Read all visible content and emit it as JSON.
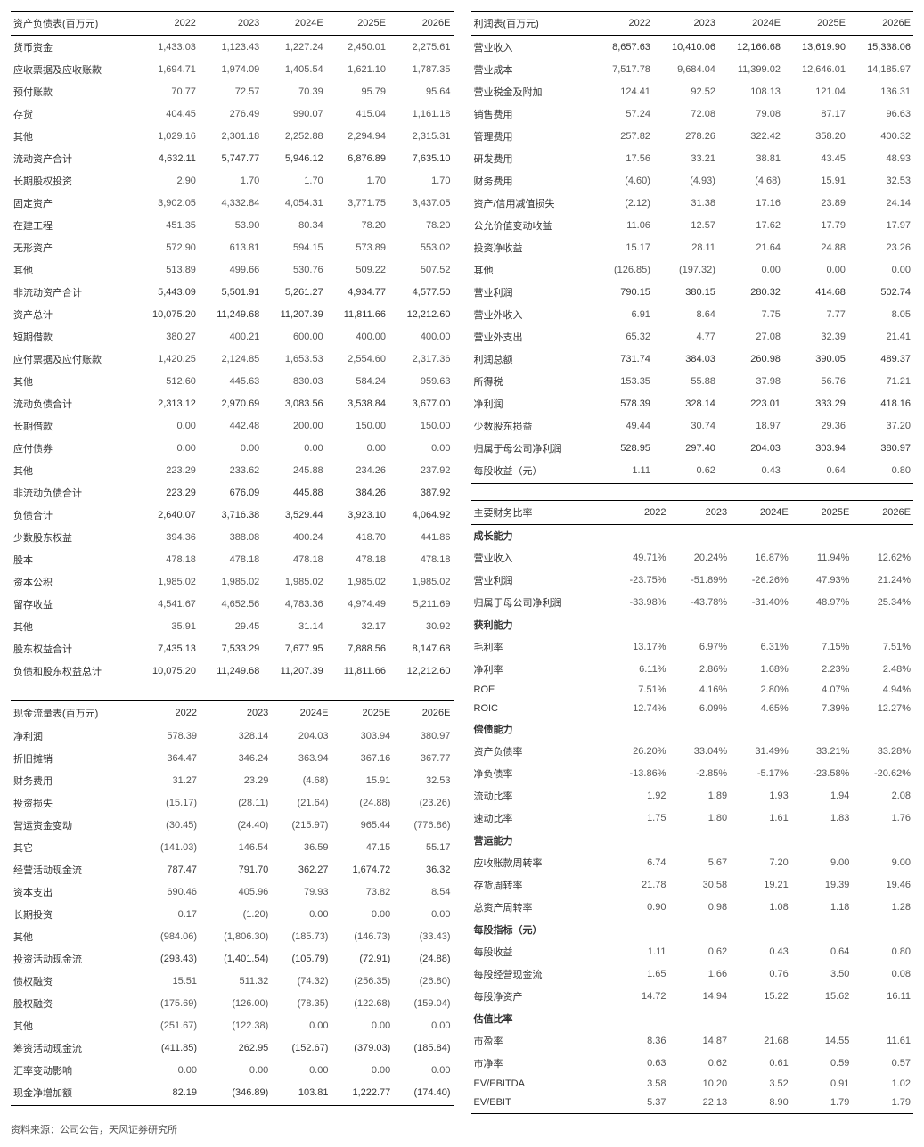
{
  "years": [
    "2022",
    "2023",
    "2024E",
    "2025E",
    "2026E"
  ],
  "balance_sheet": {
    "title": "资产负债表(百万元)",
    "rows": [
      {
        "label": "货币资金",
        "v": [
          "1,433.03",
          "1,123.43",
          "1,227.24",
          "2,450.01",
          "2,275.61"
        ]
      },
      {
        "label": "应收票据及应收账款",
        "v": [
          "1,694.71",
          "1,974.09",
          "1,405.54",
          "1,621.10",
          "1,787.35"
        ]
      },
      {
        "label": "预付账款",
        "v": [
          "70.77",
          "72.57",
          "70.39",
          "95.79",
          "95.64"
        ]
      },
      {
        "label": "存货",
        "v": [
          "404.45",
          "276.49",
          "990.07",
          "415.04",
          "1,161.18"
        ]
      },
      {
        "label": "其他",
        "v": [
          "1,029.16",
          "2,301.18",
          "2,252.88",
          "2,294.94",
          "2,315.31"
        ]
      },
      {
        "label": "流动资产合计",
        "v": [
          "4,632.11",
          "5,747.77",
          "5,946.12",
          "6,876.89",
          "7,635.10"
        ],
        "bold": true
      },
      {
        "label": "长期股权投资",
        "v": [
          "2.90",
          "1.70",
          "1.70",
          "1.70",
          "1.70"
        ]
      },
      {
        "label": "固定资产",
        "v": [
          "3,902.05",
          "4,332.84",
          "4,054.31",
          "3,771.75",
          "3,437.05"
        ]
      },
      {
        "label": "在建工程",
        "v": [
          "451.35",
          "53.90",
          "80.34",
          "78.20",
          "78.20"
        ]
      },
      {
        "label": "无形资产",
        "v": [
          "572.90",
          "613.81",
          "594.15",
          "573.89",
          "553.02"
        ]
      },
      {
        "label": "其他",
        "v": [
          "513.89",
          "499.66",
          "530.76",
          "509.22",
          "507.52"
        ]
      },
      {
        "label": "非流动资产合计",
        "v": [
          "5,443.09",
          "5,501.91",
          "5,261.27",
          "4,934.77",
          "4,577.50"
        ],
        "bold": true
      },
      {
        "label": "资产总计",
        "v": [
          "10,075.20",
          "11,249.68",
          "11,207.39",
          "11,811.66",
          "12,212.60"
        ],
        "bold": true
      },
      {
        "label": "短期借款",
        "v": [
          "380.27",
          "400.21",
          "600.00",
          "400.00",
          "400.00"
        ]
      },
      {
        "label": "应付票据及应付账款",
        "v": [
          "1,420.25",
          "2,124.85",
          "1,653.53",
          "2,554.60",
          "2,317.36"
        ]
      },
      {
        "label": "其他",
        "v": [
          "512.60",
          "445.63",
          "830.03",
          "584.24",
          "959.63"
        ]
      },
      {
        "label": "流动负债合计",
        "v": [
          "2,313.12",
          "2,970.69",
          "3,083.56",
          "3,538.84",
          "3,677.00"
        ],
        "bold": true
      },
      {
        "label": "长期借款",
        "v": [
          "0.00",
          "442.48",
          "200.00",
          "150.00",
          "150.00"
        ]
      },
      {
        "label": "应付债券",
        "v": [
          "0.00",
          "0.00",
          "0.00",
          "0.00",
          "0.00"
        ]
      },
      {
        "label": "其他",
        "v": [
          "223.29",
          "233.62",
          "245.88",
          "234.26",
          "237.92"
        ]
      },
      {
        "label": "非流动负债合计",
        "v": [
          "223.29",
          "676.09",
          "445.88",
          "384.26",
          "387.92"
        ],
        "bold": true
      },
      {
        "label": "负债合计",
        "v": [
          "2,640.07",
          "3,716.38",
          "3,529.44",
          "3,923.10",
          "4,064.92"
        ],
        "bold": true
      },
      {
        "label": "少数股东权益",
        "v": [
          "394.36",
          "388.08",
          "400.24",
          "418.70",
          "441.86"
        ]
      },
      {
        "label": "股本",
        "v": [
          "478.18",
          "478.18",
          "478.18",
          "478.18",
          "478.18"
        ]
      },
      {
        "label": "资本公积",
        "v": [
          "1,985.02",
          "1,985.02",
          "1,985.02",
          "1,985.02",
          "1,985.02"
        ]
      },
      {
        "label": "留存收益",
        "v": [
          "4,541.67",
          "4,652.56",
          "4,783.36",
          "4,974.49",
          "5,211.69"
        ]
      },
      {
        "label": "其他",
        "v": [
          "35.91",
          "29.45",
          "31.14",
          "32.17",
          "30.92"
        ]
      },
      {
        "label": "股东权益合计",
        "v": [
          "7,435.13",
          "7,533.29",
          "7,677.95",
          "7,888.56",
          "8,147.68"
        ],
        "bold": true
      },
      {
        "label": "负债和股东权益总计",
        "v": [
          "10,075.20",
          "11,249.68",
          "11,207.39",
          "11,811.66",
          "12,212.60"
        ],
        "bold": true
      }
    ]
  },
  "cash_flow": {
    "title": "现金流量表(百万元)",
    "rows": [
      {
        "label": "净利润",
        "v": [
          "578.39",
          "328.14",
          "204.03",
          "303.94",
          "380.97"
        ]
      },
      {
        "label": "折旧摊销",
        "v": [
          "364.47",
          "346.24",
          "363.94",
          "367.16",
          "367.77"
        ]
      },
      {
        "label": "财务费用",
        "v": [
          "31.27",
          "23.29",
          "(4.68)",
          "15.91",
          "32.53"
        ]
      },
      {
        "label": "投资损失",
        "v": [
          "(15.17)",
          "(28.11)",
          "(21.64)",
          "(24.88)",
          "(23.26)"
        ]
      },
      {
        "label": "营运资金变动",
        "v": [
          "(30.45)",
          "(24.40)",
          "(215.97)",
          "965.44",
          "(776.86)"
        ]
      },
      {
        "label": "其它",
        "v": [
          "(141.03)",
          "146.54",
          "36.59",
          "47.15",
          "55.17"
        ]
      },
      {
        "label": "经营活动现金流",
        "v": [
          "787.47",
          "791.70",
          "362.27",
          "1,674.72",
          "36.32"
        ],
        "bold": true
      },
      {
        "label": "资本支出",
        "v": [
          "690.46",
          "405.96",
          "79.93",
          "73.82",
          "8.54"
        ]
      },
      {
        "label": "长期投资",
        "v": [
          "0.17",
          "(1.20)",
          "0.00",
          "0.00",
          "0.00"
        ]
      },
      {
        "label": "其他",
        "v": [
          "(984.06)",
          "(1,806.30)",
          "(185.73)",
          "(146.73)",
          "(33.43)"
        ]
      },
      {
        "label": "投资活动现金流",
        "v": [
          "(293.43)",
          "(1,401.54)",
          "(105.79)",
          "(72.91)",
          "(24.88)"
        ],
        "bold": true
      },
      {
        "label": "债权融资",
        "v": [
          "15.51",
          "511.32",
          "(74.32)",
          "(256.35)",
          "(26.80)"
        ]
      },
      {
        "label": "股权融资",
        "v": [
          "(175.69)",
          "(126.00)",
          "(78.35)",
          "(122.68)",
          "(159.04)"
        ]
      },
      {
        "label": "其他",
        "v": [
          "(251.67)",
          "(122.38)",
          "0.00",
          "0.00",
          "0.00"
        ]
      },
      {
        "label": "筹资活动现金流",
        "v": [
          "(411.85)",
          "262.95",
          "(152.67)",
          "(379.03)",
          "(185.84)"
        ],
        "bold": true
      },
      {
        "label": "汇率变动影响",
        "v": [
          "0.00",
          "0.00",
          "0.00",
          "0.00",
          "0.00"
        ]
      },
      {
        "label": "现金净增加额",
        "v": [
          "82.19",
          "(346.89)",
          "103.81",
          "1,222.77",
          "(174.40)"
        ],
        "bold": true
      }
    ]
  },
  "income": {
    "title": "利润表(百万元)",
    "rows": [
      {
        "label": "营业收入",
        "v": [
          "8,657.63",
          "10,410.06",
          "12,166.68",
          "13,619.90",
          "15,338.06"
        ],
        "bold": true
      },
      {
        "label": "营业成本",
        "v": [
          "7,517.78",
          "9,684.04",
          "11,399.02",
          "12,646.01",
          "14,185.97"
        ]
      },
      {
        "label": "营业税金及附加",
        "v": [
          "124.41",
          "92.52",
          "108.13",
          "121.04",
          "136.31"
        ]
      },
      {
        "label": "销售费用",
        "v": [
          "57.24",
          "72.08",
          "79.08",
          "87.17",
          "96.63"
        ]
      },
      {
        "label": "管理费用",
        "v": [
          "257.82",
          "278.26",
          "322.42",
          "358.20",
          "400.32"
        ]
      },
      {
        "label": "研发费用",
        "v": [
          "17.56",
          "33.21",
          "38.81",
          "43.45",
          "48.93"
        ]
      },
      {
        "label": "财务费用",
        "v": [
          "(4.60)",
          "(4.93)",
          "(4.68)",
          "15.91",
          "32.53"
        ]
      },
      {
        "label": "资产/信用减值损失",
        "v": [
          "(2.12)",
          "31.38",
          "17.16",
          "23.89",
          "24.14"
        ]
      },
      {
        "label": "公允价值变动收益",
        "v": [
          "11.06",
          "12.57",
          "17.62",
          "17.79",
          "17.97"
        ]
      },
      {
        "label": "投资净收益",
        "v": [
          "15.17",
          "28.11",
          "21.64",
          "24.88",
          "23.26"
        ]
      },
      {
        "label": "其他",
        "v": [
          "(126.85)",
          "(197.32)",
          "0.00",
          "0.00",
          "0.00"
        ]
      },
      {
        "label": "营业利润",
        "v": [
          "790.15",
          "380.15",
          "280.32",
          "414.68",
          "502.74"
        ],
        "bold": true
      },
      {
        "label": "营业外收入",
        "v": [
          "6.91",
          "8.64",
          "7.75",
          "7.77",
          "8.05"
        ]
      },
      {
        "label": "营业外支出",
        "v": [
          "65.32",
          "4.77",
          "27.08",
          "32.39",
          "21.41"
        ]
      },
      {
        "label": "利润总额",
        "v": [
          "731.74",
          "384.03",
          "260.98",
          "390.05",
          "489.37"
        ],
        "bold": true
      },
      {
        "label": "所得税",
        "v": [
          "153.35",
          "55.88",
          "37.98",
          "56.76",
          "71.21"
        ]
      },
      {
        "label": "净利润",
        "v": [
          "578.39",
          "328.14",
          "223.01",
          "333.29",
          "418.16"
        ],
        "bold": true
      },
      {
        "label": "少数股东损益",
        "v": [
          "49.44",
          "30.74",
          "18.97",
          "29.36",
          "37.20"
        ]
      },
      {
        "label": "归属于母公司净利润",
        "v": [
          "528.95",
          "297.40",
          "204.03",
          "303.94",
          "380.97"
        ],
        "bold": true
      },
      {
        "label": "每股收益（元）",
        "v": [
          "1.11",
          "0.62",
          "0.43",
          "0.64",
          "0.80"
        ]
      }
    ]
  },
  "ratios": {
    "title": "主要财务比率",
    "sections": [
      {
        "heading": "成长能力",
        "rows": [
          {
            "label": "营业收入",
            "v": [
              "49.71%",
              "20.24%",
              "16.87%",
              "11.94%",
              "12.62%"
            ]
          },
          {
            "label": "营业利润",
            "v": [
              "-23.75%",
              "-51.89%",
              "-26.26%",
              "47.93%",
              "21.24%"
            ]
          },
          {
            "label": "归属于母公司净利润",
            "v": [
              "-33.98%",
              "-43.78%",
              "-31.40%",
              "48.97%",
              "25.34%"
            ]
          }
        ]
      },
      {
        "heading": "获利能力",
        "rows": [
          {
            "label": "毛利率",
            "v": [
              "13.17%",
              "6.97%",
              "6.31%",
              "7.15%",
              "7.51%"
            ]
          },
          {
            "label": "净利率",
            "v": [
              "6.11%",
              "2.86%",
              "1.68%",
              "2.23%",
              "2.48%"
            ]
          },
          {
            "label": "ROE",
            "v": [
              "7.51%",
              "4.16%",
              "2.80%",
              "4.07%",
              "4.94%"
            ]
          },
          {
            "label": "ROIC",
            "v": [
              "12.74%",
              "6.09%",
              "4.65%",
              "7.39%",
              "12.27%"
            ]
          }
        ]
      },
      {
        "heading": "偿债能力",
        "rows": [
          {
            "label": "资产负债率",
            "v": [
              "26.20%",
              "33.04%",
              "31.49%",
              "33.21%",
              "33.28%"
            ]
          },
          {
            "label": "净负债率",
            "v": [
              "-13.86%",
              "-2.85%",
              "-5.17%",
              "-23.58%",
              "-20.62%"
            ]
          },
          {
            "label": "流动比率",
            "v": [
              "1.92",
              "1.89",
              "1.93",
              "1.94",
              "2.08"
            ]
          },
          {
            "label": "速动比率",
            "v": [
              "1.75",
              "1.80",
              "1.61",
              "1.83",
              "1.76"
            ]
          }
        ]
      },
      {
        "heading": "营运能力",
        "rows": [
          {
            "label": "应收账款周转率",
            "v": [
              "6.74",
              "5.67",
              "7.20",
              "9.00",
              "9.00"
            ]
          },
          {
            "label": "存货周转率",
            "v": [
              "21.78",
              "30.58",
              "19.21",
              "19.39",
              "19.46"
            ]
          },
          {
            "label": "总资产周转率",
            "v": [
              "0.90",
              "0.98",
              "1.08",
              "1.18",
              "1.28"
            ]
          }
        ]
      },
      {
        "heading": "每股指标（元）",
        "rows": [
          {
            "label": "每股收益",
            "v": [
              "1.11",
              "0.62",
              "0.43",
              "0.64",
              "0.80"
            ]
          },
          {
            "label": "每股经营现金流",
            "v": [
              "1.65",
              "1.66",
              "0.76",
              "3.50",
              "0.08"
            ]
          },
          {
            "label": "每股净资产",
            "v": [
              "14.72",
              "14.94",
              "15.22",
              "15.62",
              "16.11"
            ]
          }
        ]
      },
      {
        "heading": "估值比率",
        "rows": [
          {
            "label": "市盈率",
            "v": [
              "8.36",
              "14.87",
              "21.68",
              "14.55",
              "11.61"
            ]
          },
          {
            "label": "市净率",
            "v": [
              "0.63",
              "0.62",
              "0.61",
              "0.59",
              "0.57"
            ]
          },
          {
            "label": "EV/EBITDA",
            "v": [
              "3.58",
              "10.20",
              "3.52",
              "0.91",
              "1.02"
            ]
          },
          {
            "label": "EV/EBIT",
            "v": [
              "5.37",
              "22.13",
              "8.90",
              "1.79",
              "1.79"
            ]
          }
        ]
      }
    ]
  },
  "source": "资料来源：公司公告，天风证券研究所"
}
